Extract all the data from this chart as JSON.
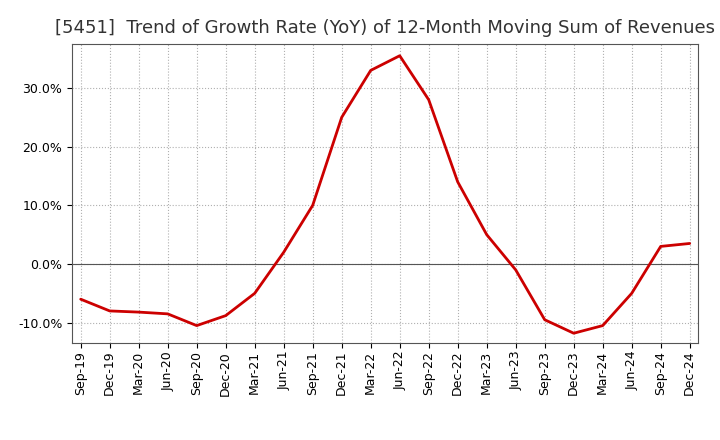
{
  "title": "[5451]  Trend of Growth Rate (YoY) of 12-Month Moving Sum of Revenues",
  "line_color": "#cc0000",
  "background_color": "#ffffff",
  "grid_color": "#b0b0b0",
  "x_labels": [
    "Sep-19",
    "Dec-19",
    "Mar-20",
    "Jun-20",
    "Sep-20",
    "Dec-20",
    "Mar-21",
    "Jun-21",
    "Sep-21",
    "Dec-21",
    "Mar-22",
    "Jun-22",
    "Sep-22",
    "Dec-22",
    "Mar-23",
    "Jun-23",
    "Sep-23",
    "Dec-23",
    "Mar-24",
    "Jun-24",
    "Sep-24",
    "Dec-24"
  ],
  "y_values": [
    -6.0,
    -8.0,
    -8.2,
    -8.5,
    -10.5,
    -8.8,
    -5.0,
    2.0,
    10.0,
    25.0,
    33.0,
    35.5,
    28.0,
    14.0,
    5.0,
    -1.0,
    -9.5,
    -11.8,
    -10.5,
    -5.0,
    3.0,
    3.5
  ],
  "ylim": [
    -13.5,
    37.5
  ],
  "yticks": [
    -10.0,
    0.0,
    10.0,
    20.0,
    30.0
  ],
  "title_fontsize": 13,
  "tick_fontsize": 9,
  "linewidth": 2.0
}
